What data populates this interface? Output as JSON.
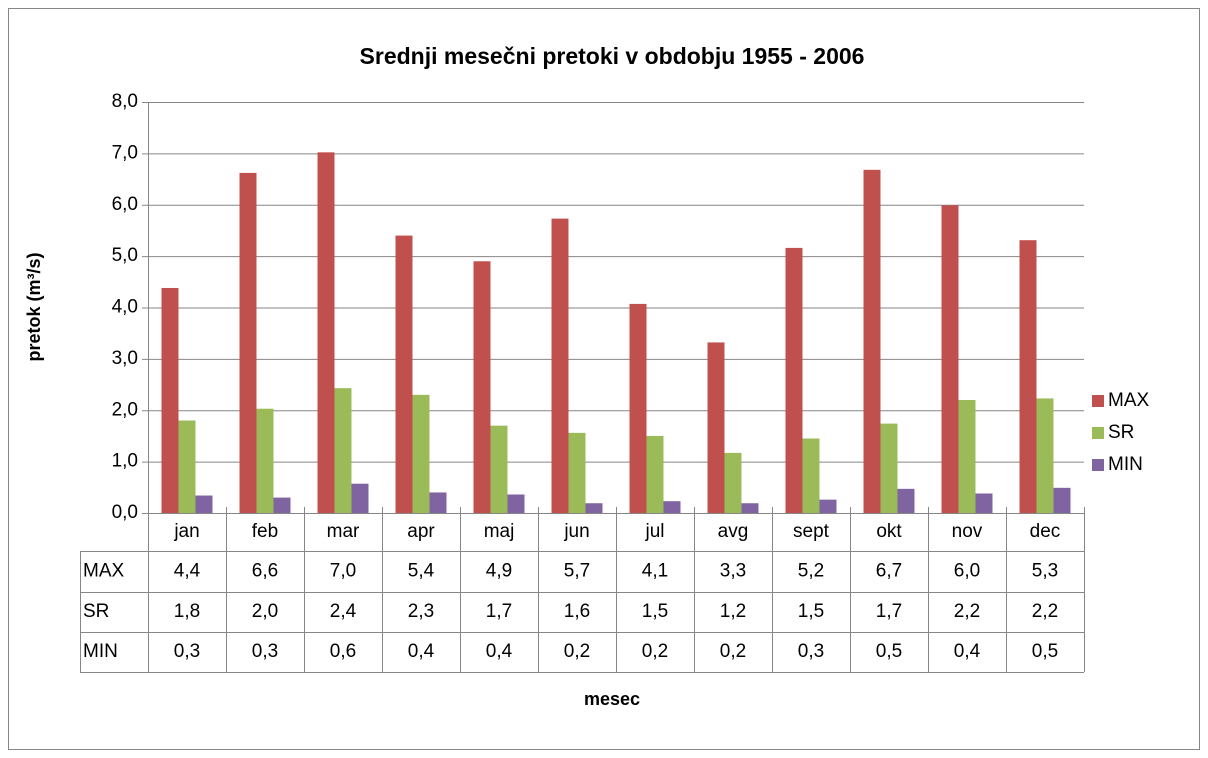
{
  "chart_data": {
    "type": "bar",
    "title": "Srednji mesečni pretoki v obdobju 1955 - 2006",
    "y_label": "pretok (m³/s)",
    "x_label": "mesec",
    "categories": [
      "jan",
      "feb",
      "mar",
      "apr",
      "maj",
      "jun",
      "jul",
      "avg",
      "sept",
      "okt",
      "nov",
      "dec"
    ],
    "series": [
      {
        "name": "MAX",
        "color": "#c0504d",
        "values": [
          4.38,
          6.62,
          7.02,
          5.4,
          4.9,
          5.73,
          4.07,
          3.32,
          5.16,
          6.68,
          5.99,
          5.31
        ],
        "value_labels": [
          "4,4",
          "6,6",
          "7,0",
          "5,4",
          "4,9",
          "5,7",
          "4,1",
          "3,3",
          "5,2",
          "6,7",
          "6,0",
          "5,3"
        ]
      },
      {
        "name": "SR",
        "color": "#9bbb59",
        "values": [
          1.8,
          2.03,
          2.43,
          2.3,
          1.7,
          1.56,
          1.5,
          1.17,
          1.45,
          1.74,
          2.2,
          2.23
        ],
        "value_labels": [
          "1,8",
          "2,0",
          "2,4",
          "2,3",
          "1,7",
          "1,6",
          "1,5",
          "1,2",
          "1,5",
          "1,7",
          "2,2",
          "2,2"
        ]
      },
      {
        "name": "MIN",
        "color": "#8064a2",
        "values": [
          0.34,
          0.3,
          0.57,
          0.4,
          0.36,
          0.19,
          0.23,
          0.19,
          0.26,
          0.47,
          0.38,
          0.49
        ],
        "value_labels": [
          "0,3",
          "0,3",
          "0,6",
          "0,4",
          "0,4",
          "0,2",
          "0,2",
          "0,2",
          "0,3",
          "0,5",
          "0,4",
          "0,5"
        ]
      }
    ],
    "ylim": [
      0,
      8
    ],
    "yticks": [
      {
        "value": 0,
        "label": "0,0"
      },
      {
        "value": 1,
        "label": "1,0"
      },
      {
        "value": 2,
        "label": "2,0"
      },
      {
        "value": 3,
        "label": "3,0"
      },
      {
        "value": 4,
        "label": "4,0"
      },
      {
        "value": 5,
        "label": "5,0"
      },
      {
        "value": 6,
        "label": "6,0"
      },
      {
        "value": 7,
        "label": "7,0"
      },
      {
        "value": 8,
        "label": "8,0"
      }
    ],
    "grid": true,
    "legend": "right",
    "data_table": true
  }
}
